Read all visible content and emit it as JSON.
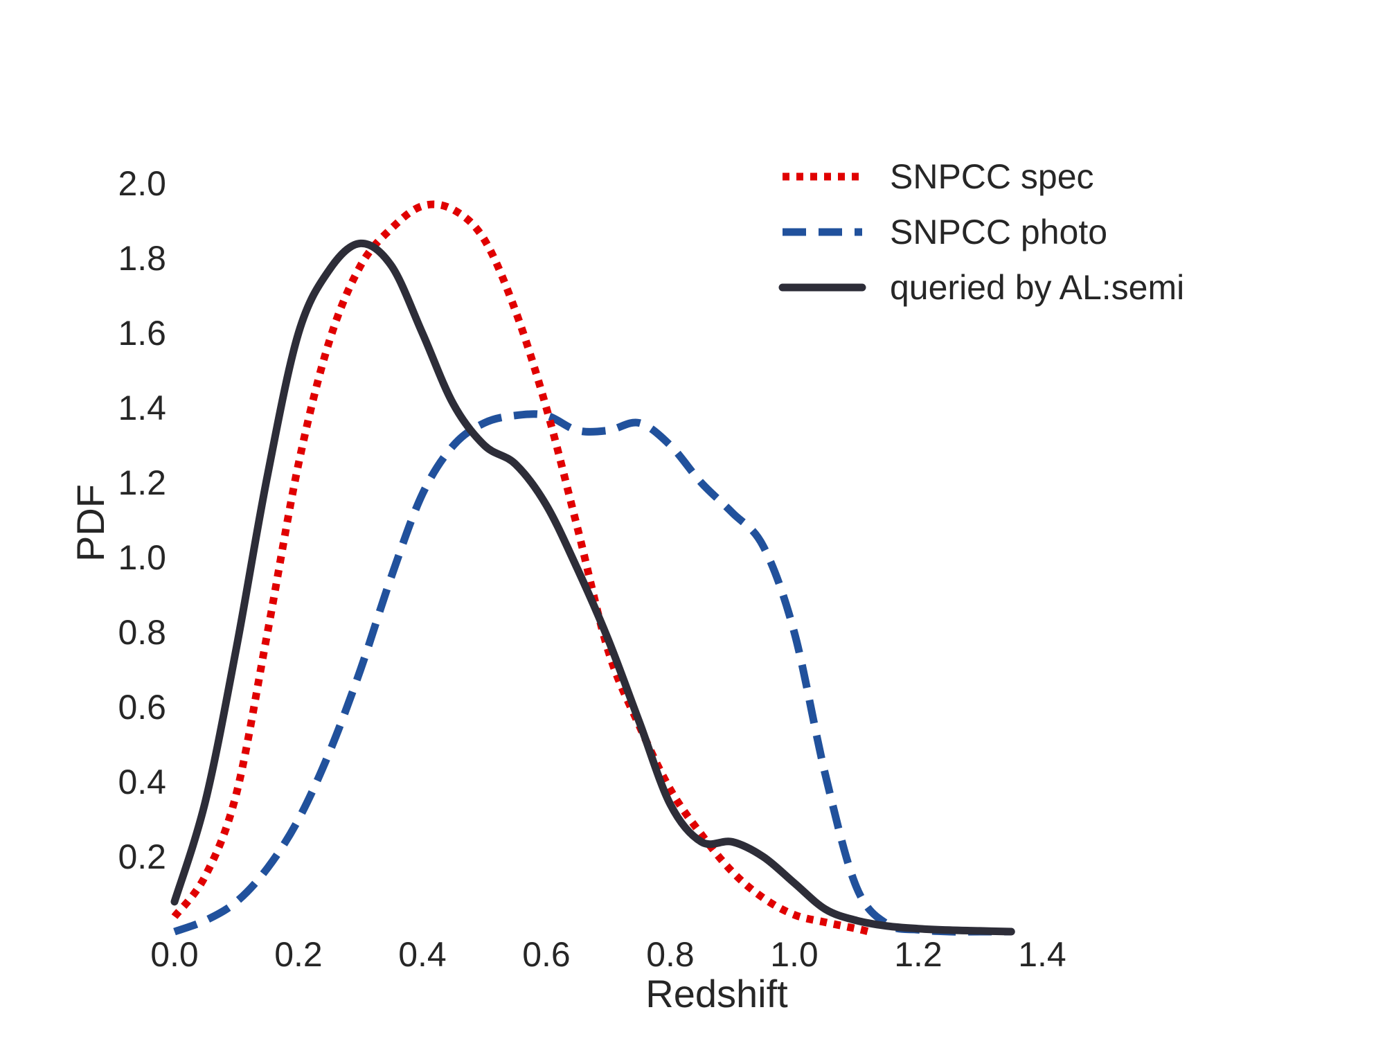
{
  "chart_data": {
    "type": "line",
    "title": "",
    "xlabel": "Redshift",
    "ylabel": "PDF",
    "xlim": [
      0.0,
      1.4
    ],
    "ylim": [
      0.0,
      2.0
    ],
    "grid": false,
    "legend_position": "top-right",
    "x_ticks": [
      "0.0",
      "0.2",
      "0.4",
      "0.6",
      "0.8",
      "1.0",
      "1.2",
      "1.4"
    ],
    "y_ticks": [
      "0.2",
      "0.4",
      "0.6",
      "0.8",
      "1.0",
      "1.2",
      "1.4",
      "1.6",
      "1.8",
      "2.0"
    ],
    "series": [
      {
        "name": "SNPCC spec",
        "style": "dotted",
        "color": "#e00000",
        "x": [
          0.0,
          0.05,
          0.1,
          0.15,
          0.2,
          0.25,
          0.3,
          0.35,
          0.4,
          0.45,
          0.5,
          0.55,
          0.6,
          0.65,
          0.7,
          0.75,
          0.8,
          0.85,
          0.9,
          0.95,
          1.0,
          1.05,
          1.1,
          1.12
        ],
        "y": [
          0.04,
          0.15,
          0.37,
          0.8,
          1.25,
          1.58,
          1.78,
          1.88,
          1.94,
          1.93,
          1.85,
          1.66,
          1.4,
          1.08,
          0.75,
          0.55,
          0.38,
          0.26,
          0.16,
          0.09,
          0.045,
          0.025,
          0.008,
          0.0
        ]
      },
      {
        "name": "SNPCC photo",
        "style": "dashed",
        "color": "#21519c",
        "x": [
          0.0,
          0.05,
          0.1,
          0.15,
          0.2,
          0.25,
          0.3,
          0.35,
          0.4,
          0.45,
          0.5,
          0.55,
          0.6,
          0.65,
          0.7,
          0.75,
          0.8,
          0.85,
          0.9,
          0.95,
          1.0,
          1.05,
          1.1,
          1.15,
          1.2,
          1.25,
          1.3,
          1.35
        ],
        "y": [
          0.0,
          0.03,
          0.08,
          0.17,
          0.3,
          0.48,
          0.7,
          0.95,
          1.17,
          1.3,
          1.36,
          1.38,
          1.38,
          1.34,
          1.34,
          1.36,
          1.3,
          1.2,
          1.12,
          1.03,
          0.8,
          0.42,
          0.12,
          0.02,
          0.005,
          0.0,
          0.0,
          0.0
        ]
      },
      {
        "name": "queried by AL:semi",
        "style": "solid",
        "color": "#2d2d38",
        "x": [
          0.0,
          0.05,
          0.1,
          0.15,
          0.2,
          0.25,
          0.3,
          0.35,
          0.4,
          0.45,
          0.5,
          0.55,
          0.6,
          0.65,
          0.7,
          0.75,
          0.8,
          0.85,
          0.9,
          0.95,
          1.0,
          1.05,
          1.1,
          1.15,
          1.2,
          1.25,
          1.3,
          1.35
        ],
        "y": [
          0.08,
          0.35,
          0.76,
          1.22,
          1.6,
          1.77,
          1.84,
          1.78,
          1.6,
          1.41,
          1.3,
          1.25,
          1.14,
          0.97,
          0.78,
          0.56,
          0.34,
          0.24,
          0.24,
          0.2,
          0.13,
          0.06,
          0.03,
          0.015,
          0.008,
          0.004,
          0.002,
          0.0
        ]
      }
    ]
  }
}
